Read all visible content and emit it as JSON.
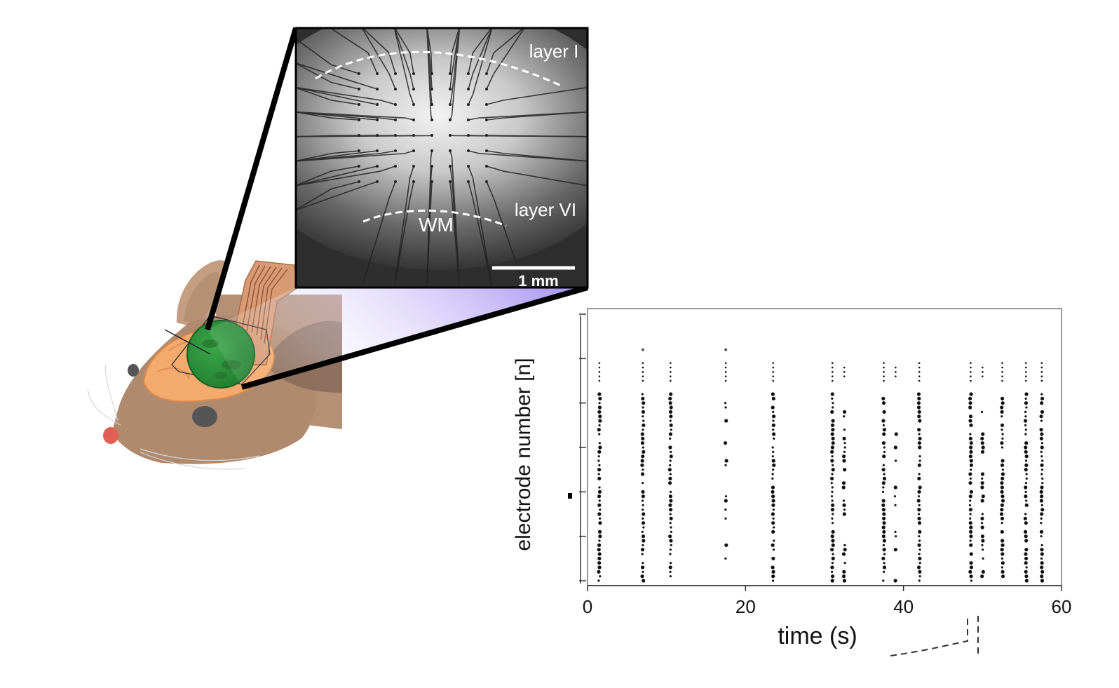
{
  "micrograph": {
    "label_top": "layer I",
    "label_bottom": "layer VI",
    "label_wm": "WM",
    "scale_bar": "1 mm"
  },
  "chart_data": {
    "type": "scatter",
    "title": "",
    "xlabel": "time (s)",
    "ylabel": "electrode number [n]",
    "xlim": [
      0,
      60
    ],
    "xticks": [
      0,
      20,
      40,
      60
    ],
    "ylim": [
      0,
      60
    ],
    "grid": false,
    "burst_times_s": [
      1.5,
      7,
      10.5,
      17.5,
      23.5,
      31,
      32.5,
      37.5,
      39,
      42,
      48.5,
      50,
      52.5,
      55.5,
      57.5
    ],
    "burst_profiles": [
      "full",
      "full",
      "full",
      "sparse",
      "full",
      "full",
      "partial",
      "full",
      "partial",
      "full",
      "full",
      "partial",
      "full",
      "full",
      "full"
    ],
    "isolated_spikes": [
      {
        "x": 7,
        "y": 52
      },
      {
        "x": 17.5,
        "y": 52
      }
    ]
  },
  "colors": {
    "mouse_fur": "#b08a6e",
    "brain": "#f4aa6c",
    "electrode_patch": "#2f9b3f",
    "flex_cable": "#d79a73",
    "nose": "#e06055",
    "eye": "#555555",
    "magnifier": "#a590ee",
    "spike": "#111111"
  },
  "icons": {
    "mouse": "mouse-head-illustration",
    "magnifier": "zoom-cone"
  }
}
